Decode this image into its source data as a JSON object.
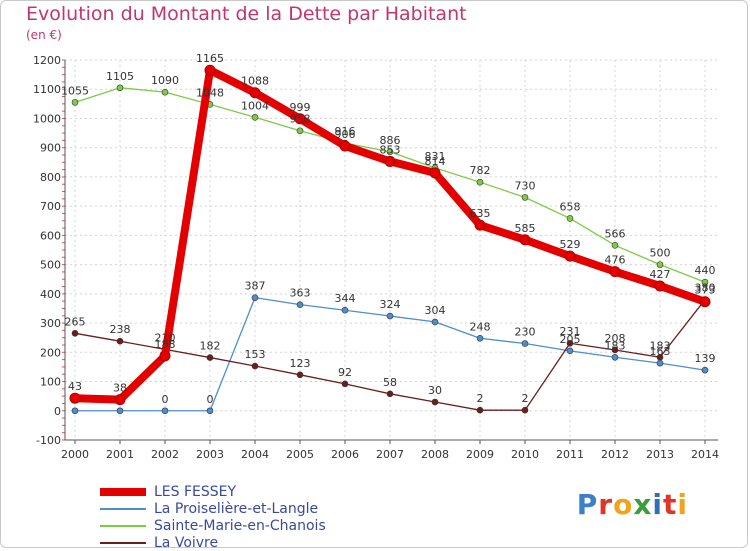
{
  "title": "Evolution du Montant de la Dette par Habitant",
  "unit_label": "(en €)",
  "brand": {
    "letters": [
      {
        "ch": "P",
        "color": "#3b7fc4"
      },
      {
        "ch": "r",
        "color": "#e0342b"
      },
      {
        "ch": "o",
        "color": "#f2a21b"
      },
      {
        "ch": "x",
        "color": "#3a9e3a"
      },
      {
        "ch": "i",
        "color": "#2f6fb9"
      },
      {
        "ch": "t",
        "color": "#e0342b"
      },
      {
        "ch": "i",
        "color": "#f2a21b"
      }
    ]
  },
  "chart_data": {
    "type": "line",
    "title": "Evolution du Montant de la Dette par Habitant",
    "ylabel": "(en €)",
    "x": [
      2000,
      2001,
      2002,
      2003,
      2004,
      2005,
      2006,
      2007,
      2008,
      2009,
      2010,
      2011,
      2012,
      2013,
      2014
    ],
    "ylim": [
      -100,
      1200
    ],
    "yticks": [
      -100,
      0,
      100,
      200,
      300,
      400,
      500,
      600,
      700,
      800,
      900,
      1000,
      1100,
      1200
    ],
    "grid": true,
    "legend_position": "bottom-left",
    "series": [
      {
        "name": "LES FESSEY",
        "color": "#e50000",
        "values": [
          43,
          38,
          188,
          1165,
          1088,
          999,
          906,
          853,
          814,
          635,
          585,
          529,
          476,
          427,
          373
        ],
        "labels": [
          "43",
          "38",
          "188",
          "1165",
          "1088",
          "999",
          "906",
          "853",
          "814",
          "635",
          "585",
          "529",
          "476",
          "427",
          "373"
        ]
      },
      {
        "name": "La Proiselière-et-Langle",
        "color": "#4d8fcc",
        "values": [
          0,
          0,
          0,
          0,
          387,
          363,
          344,
          324,
          304,
          248,
          230,
          205,
          183,
          163,
          139
        ],
        "labels": [
          "",
          "",
          "0",
          "0",
          "387",
          "363",
          "344",
          "324",
          "304",
          "248",
          "230",
          "205",
          "183",
          "163",
          "139"
        ]
      },
      {
        "name": "Sainte-Marie-en-Chanois",
        "color": "#7ccc44",
        "values": [
          1055,
          1105,
          1090,
          1048,
          1004,
          958,
          916,
          886,
          831,
          782,
          730,
          658,
          566,
          500,
          440
        ],
        "labels": [
          "1055",
          "1105",
          "1090",
          "1048",
          "1004",
          "958",
          "916",
          "886",
          "831",
          "782",
          "730",
          "658",
          "566",
          "500",
          "440"
        ]
      },
      {
        "name": "La Voivre",
        "color": "#6b1e1e",
        "values": [
          265,
          238,
          210,
          182,
          153,
          123,
          92,
          58,
          30,
          2,
          2,
          231,
          208,
          183,
          380
        ],
        "labels": [
          "265",
          "238",
          "210",
          "182",
          "153",
          "123",
          "92",
          "58",
          "30",
          "2",
          "2",
          "231",
          "208",
          "183",
          "380"
        ]
      }
    ]
  }
}
